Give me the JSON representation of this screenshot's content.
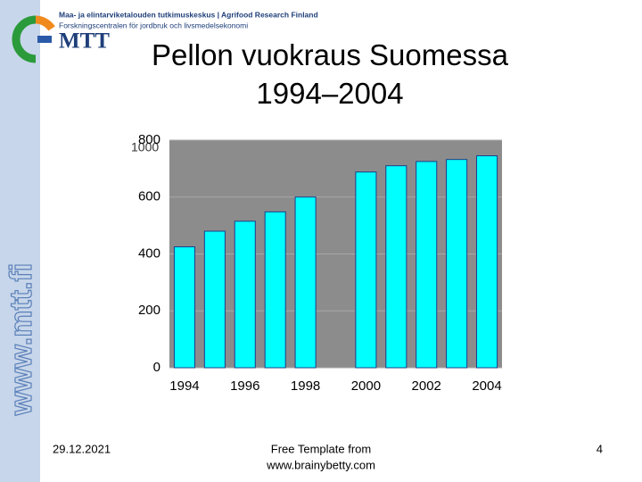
{
  "header": {
    "org_line1": "Maa- ja elintarviketalouden tutkimuskeskus | Agrifood Research Finland",
    "org_line2": "Forskningscentralen för jordbruk och livsmedelsekonomi",
    "logo_text": "MTT",
    "side_text": "www.mtt.fi"
  },
  "chart_data": {
    "type": "bar",
    "title": "Pellon vuokraus Suomessa 1994–2004",
    "y_label": "1000",
    "categories": [
      "1994",
      null,
      "1996",
      null,
      "1998",
      null,
      "2000",
      null,
      "2002",
      null,
      "2004"
    ],
    "values": [
      425,
      480,
      515,
      548,
      600,
      null,
      688,
      710,
      725,
      732,
      745
    ],
    "color": "#00ffff",
    "ylim": [
      0,
      800
    ],
    "yticks": [
      0,
      200,
      400,
      600,
      800
    ],
    "grid": true
  },
  "footer": {
    "date": "29.12.2021",
    "template_line1": "Free Template from",
    "template_line2": "www.brainybetty.com",
    "page": "4"
  }
}
